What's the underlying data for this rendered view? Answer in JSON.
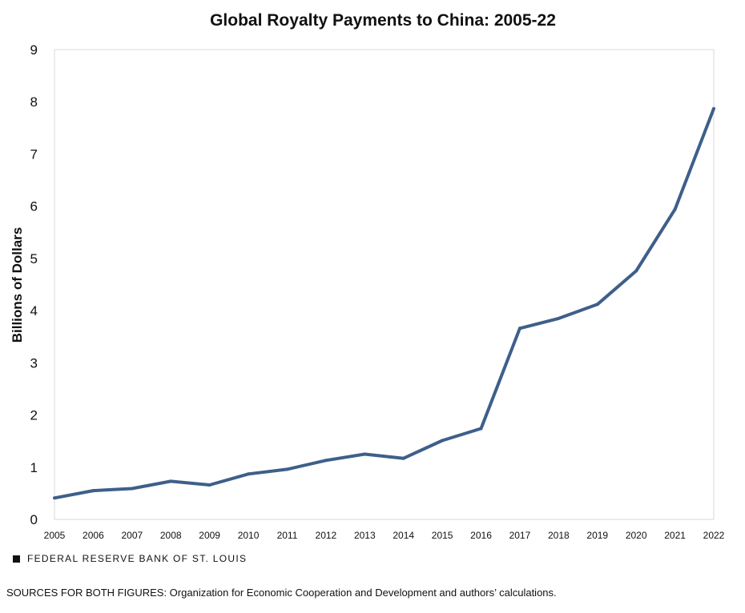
{
  "footer": {
    "brand": "FEDERAL RESERVE BANK OF ST. LOUIS",
    "sources": "SOURCES FOR BOTH FIGURES: Organization for Economic Cooperation and Development and authors’ calculations."
  },
  "chart_data": {
    "type": "line",
    "title": "Global Royalty Payments to China: 2005-22",
    "xlabel": "",
    "ylabel": "Billions of Dollars",
    "x": [
      "2005",
      "2006",
      "2007",
      "2008",
      "2009",
      "2010",
      "2011",
      "2012",
      "2013",
      "2014",
      "2015",
      "2016",
      "2017",
      "2018",
      "2019",
      "2020",
      "2021",
      "2022"
    ],
    "series": [
      {
        "values": [
          0.41,
          0.55,
          0.59,
          0.73,
          0.66,
          0.87,
          0.96,
          1.13,
          1.25,
          1.17,
          1.51,
          1.74,
          3.66,
          3.85,
          4.12,
          4.76,
          5.94,
          7.87
        ],
        "color": "#3e5f8a"
      }
    ],
    "ylim": [
      0,
      9
    ],
    "yticks": [
      "0",
      "1",
      "2",
      "3",
      "4",
      "5",
      "6",
      "7",
      "8",
      "9"
    ],
    "grid": false,
    "legend": "none",
    "frame_color": "#d9d9d9"
  }
}
